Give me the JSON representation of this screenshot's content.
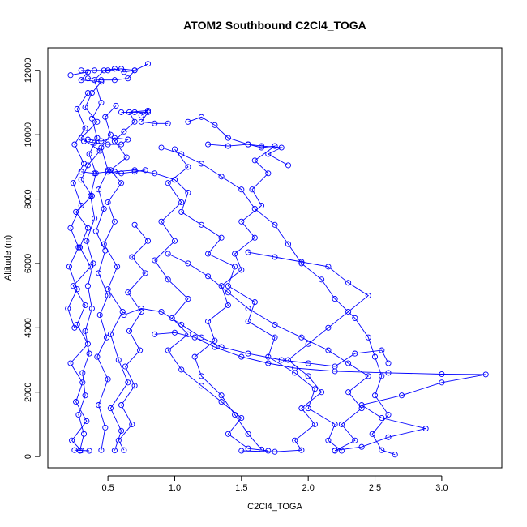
{
  "chart_data": {
    "type": "line",
    "title": "ATOM2 Southbound C2Cl4_TOGA",
    "xlabel": "C2Cl4_TOGA",
    "ylabel": "Altitude (m)",
    "xlim": [
      0.05,
      3.45
    ],
    "ylim": [
      -350,
      12700
    ],
    "xticks": [
      0.5,
      1.0,
      1.5,
      2.0,
      2.5,
      3.0
    ],
    "xtick_labels": [
      "0.5",
      "1.0",
      "1.5",
      "2.0",
      "2.5",
      "3.0"
    ],
    "yticks": [
      0,
      2000,
      4000,
      6000,
      8000,
      10000,
      12000
    ],
    "ytick_labels": [
      "0",
      "2000",
      "4000",
      "6000",
      "8000",
      "10000",
      "12000"
    ],
    "grid": false,
    "color": "#0000ff",
    "series": [
      {
        "points": [
          [
            0.29,
            180
          ],
          [
            0.32,
            700
          ],
          [
            0.28,
            1300
          ],
          [
            0.33,
            1900
          ],
          [
            0.31,
            2600
          ],
          [
            0.36,
            3200
          ],
          [
            0.33,
            3900
          ],
          [
            0.38,
            4600
          ],
          [
            0.35,
            5300
          ],
          [
            0.39,
            6000
          ],
          [
            0.34,
            6700
          ],
          [
            0.4,
            7400
          ],
          [
            0.37,
            8100
          ],
          [
            0.41,
            8800
          ],
          [
            0.36,
            9400
          ],
          [
            0.42,
            9900
          ],
          [
            0.38,
            10500
          ],
          [
            0.45,
            11000
          ],
          [
            0.4,
            11700
          ],
          [
            0.47,
            12000
          ],
          [
            0.55,
            12050
          ],
          [
            0.62,
            11950
          ],
          [
            0.7,
            12000
          ],
          [
            0.8,
            12200
          ]
        ]
      },
      {
        "points": [
          [
            0.22,
            11850
          ],
          [
            0.35,
            11950
          ],
          [
            0.3,
            11700
          ],
          [
            0.45,
            11650
          ],
          [
            0.38,
            11300
          ],
          [
            0.33,
            10850
          ],
          [
            0.42,
            10400
          ],
          [
            0.3,
            9900
          ],
          [
            0.44,
            9500
          ],
          [
            0.35,
            9050
          ],
          [
            0.3,
            8600
          ],
          [
            0.38,
            8100
          ],
          [
            0.26,
            7600
          ],
          [
            0.35,
            7100
          ],
          [
            0.29,
            6500
          ],
          [
            0.37,
            5900
          ],
          [
            0.24,
            5300
          ],
          [
            0.33,
            4700
          ],
          [
            0.27,
            4100
          ],
          [
            0.35,
            3500
          ],
          [
            0.22,
            2900
          ],
          [
            0.31,
            2300
          ],
          [
            0.26,
            1700
          ],
          [
            0.34,
            1100
          ],
          [
            0.23,
            500
          ],
          [
            0.3,
            190
          ],
          [
            0.36,
            180
          ],
          [
            0.25,
            200
          ]
        ]
      },
      {
        "points": [
          [
            0.55,
            190
          ],
          [
            0.6,
            800
          ],
          [
            0.52,
            1500
          ],
          [
            0.65,
            2300
          ],
          [
            0.58,
            3000
          ],
          [
            0.52,
            3800
          ],
          [
            0.61,
            4500
          ],
          [
            0.5,
            5200
          ],
          [
            0.57,
            5900
          ],
          [
            0.47,
            6600
          ],
          [
            0.55,
            7300
          ],
          [
            0.5,
            7900
          ],
          [
            0.6,
            8500
          ],
          [
            0.52,
            8900
          ],
          [
            0.64,
            9300
          ],
          [
            0.55,
            9800
          ],
          [
            0.62,
            10100
          ],
          [
            0.7,
            10400
          ],
          [
            0.66,
            10700
          ],
          [
            0.8,
            10750
          ],
          [
            0.75,
            10600
          ]
        ]
      },
      {
        "points": [
          [
            0.45,
            200
          ],
          [
            0.48,
            900
          ],
          [
            0.43,
            1600
          ],
          [
            0.5,
            2400
          ],
          [
            0.42,
            3100
          ],
          [
            0.49,
            3700
          ],
          [
            0.44,
            4400
          ],
          [
            0.5,
            5000
          ],
          [
            0.43,
            5700
          ],
          [
            0.48,
            6400
          ],
          [
            0.41,
            7000
          ],
          [
            0.47,
            7700
          ],
          [
            0.43,
            8300
          ],
          [
            0.5,
            8900
          ],
          [
            0.45,
            9600
          ],
          [
            0.52,
            10000
          ],
          [
            0.48,
            10550
          ],
          [
            0.56,
            10900
          ]
        ]
      },
      {
        "points": [
          [
            0.55,
            8850
          ],
          [
            0.7,
            8900
          ],
          [
            0.85,
            8800
          ],
          [
            1.0,
            8600
          ],
          [
            1.1,
            8200
          ],
          [
            1.05,
            7600
          ],
          [
            1.2,
            7200
          ],
          [
            1.35,
            6800
          ],
          [
            1.25,
            6300
          ],
          [
            1.45,
            5900
          ],
          [
            1.4,
            5300
          ],
          [
            1.6,
            4800
          ],
          [
            1.55,
            4200
          ],
          [
            1.75,
            3700
          ],
          [
            1.7,
            3100
          ],
          [
            1.9,
            2600
          ],
          [
            2.05,
            2100
          ],
          [
            2.0,
            1500
          ],
          [
            2.2,
            1000
          ],
          [
            2.15,
            500
          ],
          [
            2.25,
            180
          ]
        ]
      },
      {
        "points": [
          [
            0.9,
            9600
          ],
          [
            1.05,
            9400
          ],
          [
            1.2,
            9100
          ],
          [
            1.35,
            8700
          ],
          [
            1.5,
            8300
          ],
          [
            1.6,
            7700
          ],
          [
            1.75,
            7200
          ],
          [
            1.85,
            6600
          ],
          [
            1.95,
            6000
          ],
          [
            2.1,
            5500
          ],
          [
            2.2,
            4900
          ],
          [
            2.35,
            4300
          ],
          [
            2.45,
            3700
          ],
          [
            2.5,
            3100
          ],
          [
            2.55,
            2500
          ],
          [
            2.5,
            1900
          ],
          [
            2.6,
            1300
          ],
          [
            2.48,
            700
          ],
          [
            2.55,
            200
          ],
          [
            2.65,
            60
          ]
        ]
      },
      {
        "points": [
          [
            1.1,
            10400
          ],
          [
            1.2,
            10550
          ],
          [
            1.3,
            10300
          ],
          [
            1.4,
            9900
          ],
          [
            1.55,
            9700
          ],
          [
            1.65,
            9600
          ],
          [
            1.75,
            9650
          ],
          [
            1.6,
            9200
          ],
          [
            1.7,
            8800
          ],
          [
            1.58,
            8300
          ],
          [
            1.65,
            7800
          ],
          [
            1.5,
            7300
          ],
          [
            1.6,
            6800
          ],
          [
            1.45,
            6300
          ],
          [
            1.5,
            5800
          ],
          [
            1.35,
            5300
          ],
          [
            1.4,
            4700
          ],
          [
            1.25,
            4200
          ],
          [
            1.3,
            3600
          ],
          [
            1.15,
            3100
          ],
          [
            1.2,
            2500
          ],
          [
            1.35,
            1900
          ],
          [
            1.45,
            1300
          ],
          [
            1.55,
            700
          ],
          [
            1.65,
            220
          ]
        ]
      },
      {
        "points": [
          [
            0.85,
            3800
          ],
          [
            1.0,
            3850
          ],
          [
            1.15,
            3700
          ],
          [
            1.3,
            3400
          ],
          [
            1.5,
            3100
          ],
          [
            1.7,
            2900
          ],
          [
            1.9,
            2750
          ],
          [
            2.2,
            2650
          ],
          [
            2.6,
            2600
          ],
          [
            3.0,
            2560
          ],
          [
            3.33,
            2550
          ],
          [
            3.0,
            2300
          ],
          [
            2.7,
            1900
          ],
          [
            2.4,
            1600
          ],
          [
            2.55,
            1200
          ],
          [
            2.88,
            870
          ],
          [
            2.6,
            600
          ],
          [
            2.4,
            300
          ],
          [
            2.2,
            190
          ]
        ]
      },
      {
        "points": [
          [
            0.95,
            6300
          ],
          [
            1.1,
            6000
          ],
          [
            1.25,
            5600
          ],
          [
            1.4,
            5100
          ],
          [
            1.55,
            4600
          ],
          [
            1.75,
            4100
          ],
          [
            1.95,
            3700
          ],
          [
            2.15,
            3300
          ],
          [
            2.3,
            2900
          ],
          [
            2.45,
            2500
          ],
          [
            2.3,
            2000
          ],
          [
            2.4,
            1500
          ],
          [
            2.25,
            1000
          ],
          [
            2.35,
            500
          ],
          [
            2.2,
            180
          ]
        ]
      },
      {
        "points": [
          [
            1.55,
            6350
          ],
          [
            1.75,
            6200
          ],
          [
            1.95,
            6050
          ],
          [
            2.15,
            5900
          ],
          [
            2.3,
            5400
          ],
          [
            2.45,
            5000
          ],
          [
            2.3,
            4500
          ],
          [
            2.15,
            4000
          ],
          [
            2.0,
            3500
          ],
          [
            1.85,
            3000
          ],
          [
            2.0,
            2500
          ],
          [
            2.1,
            2000
          ],
          [
            1.95,
            1500
          ],
          [
            2.05,
            1000
          ],
          [
            1.9,
            500
          ],
          [
            1.95,
            200
          ],
          [
            1.75,
            150
          ],
          [
            1.5,
            180
          ]
        ]
      },
      {
        "points": [
          [
            1.0,
            9550
          ],
          [
            1.1,
            9000
          ],
          [
            0.95,
            8500
          ],
          [
            1.05,
            7900
          ],
          [
            0.9,
            7300
          ],
          [
            1.0,
            6700
          ],
          [
            0.85,
            6100
          ],
          [
            0.95,
            5500
          ],
          [
            1.1,
            4900
          ],
          [
            0.98,
            4300
          ],
          [
            1.1,
            3800
          ],
          [
            0.95,
            3300
          ],
          [
            1.05,
            2700
          ],
          [
            1.2,
            2200
          ],
          [
            1.35,
            1700
          ],
          [
            1.5,
            1200
          ],
          [
            1.4,
            700
          ],
          [
            1.55,
            250
          ],
          [
            1.7,
            180
          ]
        ]
      },
      {
        "points": [
          [
            0.62,
            4400
          ],
          [
            0.75,
            4600
          ],
          [
            0.9,
            4500
          ],
          [
            1.05,
            4100
          ],
          [
            1.2,
            3700
          ],
          [
            1.35,
            3400
          ],
          [
            1.55,
            3200
          ],
          [
            1.8,
            3000
          ],
          [
            2.0,
            2900
          ],
          [
            2.2,
            2800
          ],
          [
            2.35,
            3200
          ],
          [
            2.55,
            3300
          ],
          [
            2.6,
            2900
          ]
        ]
      },
      {
        "points": [
          [
            0.7,
            7200
          ],
          [
            0.8,
            6700
          ],
          [
            0.68,
            6200
          ],
          [
            0.78,
            5700
          ],
          [
            0.65,
            5100
          ],
          [
            0.75,
            4500
          ],
          [
            0.66,
            3900
          ],
          [
            0.74,
            3300
          ],
          [
            0.63,
            2800
          ],
          [
            0.7,
            2200
          ],
          [
            0.6,
            1600
          ],
          [
            0.68,
            1000
          ],
          [
            0.58,
            500
          ],
          [
            0.62,
            200
          ]
        ]
      },
      {
        "points": [
          [
            0.25,
            4000
          ],
          [
            0.2,
            4600
          ],
          [
            0.27,
            5200
          ],
          [
            0.21,
            5900
          ],
          [
            0.28,
            6500
          ],
          [
            0.22,
            7100
          ],
          [
            0.3,
            7800
          ],
          [
            0.24,
            8500
          ],
          [
            0.32,
            9100
          ],
          [
            0.25,
            9700
          ],
          [
            0.33,
            10200
          ],
          [
            0.27,
            10800
          ],
          [
            0.35,
            11300
          ]
        ]
      },
      {
        "points": [
          [
            0.3,
            12000
          ],
          [
            0.4,
            12000
          ],
          [
            0.5,
            12000
          ],
          [
            0.6,
            12050
          ],
          [
            0.7,
            12000
          ],
          [
            0.65,
            11750
          ],
          [
            0.55,
            11700
          ],
          [
            0.45,
            11700
          ],
          [
            0.35,
            11750
          ]
        ]
      },
      {
        "points": [
          [
            0.35,
            9850
          ],
          [
            0.45,
            9800
          ],
          [
            0.55,
            9900
          ],
          [
            0.65,
            9850
          ],
          [
            0.6,
            9700
          ],
          [
            0.5,
            9700
          ],
          [
            0.4,
            9750
          ],
          [
            0.32,
            9800
          ]
        ]
      },
      {
        "points": [
          [
            0.3,
            8850
          ],
          [
            0.4,
            8800
          ],
          [
            0.5,
            8850
          ],
          [
            0.6,
            8800
          ],
          [
            0.7,
            8850
          ],
          [
            0.78,
            8900
          ]
        ]
      },
      {
        "points": [
          [
            0.6,
            10700
          ],
          [
            0.7,
            10700
          ],
          [
            0.8,
            10700
          ],
          [
            0.75,
            10400
          ],
          [
            0.85,
            10350
          ],
          [
            0.95,
            10350
          ]
        ]
      },
      {
        "points": [
          [
            1.25,
            9700
          ],
          [
            1.4,
            9650
          ],
          [
            1.55,
            9700
          ],
          [
            1.65,
            9650
          ],
          [
            1.8,
            9600
          ],
          [
            1.7,
            9400
          ],
          [
            1.85,
            9050
          ]
        ]
      }
    ]
  }
}
